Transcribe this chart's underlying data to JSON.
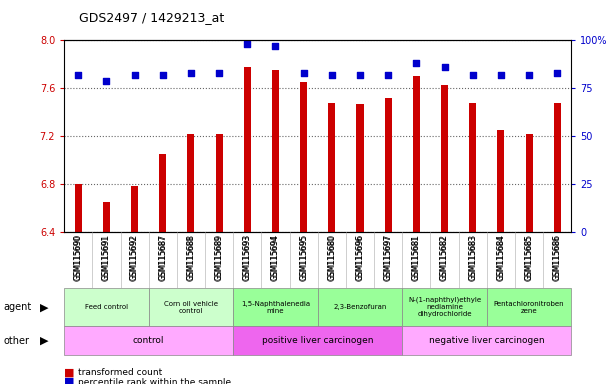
{
  "title": "GDS2497 / 1429213_at",
  "samples": [
    "GSM115690",
    "GSM115691",
    "GSM115692",
    "GSM115687",
    "GSM115688",
    "GSM115689",
    "GSM115693",
    "GSM115694",
    "GSM115695",
    "GSM115680",
    "GSM115696",
    "GSM115697",
    "GSM115681",
    "GSM115682",
    "GSM115683",
    "GSM115684",
    "GSM115685",
    "GSM115686"
  ],
  "transformed_count": [
    6.8,
    6.65,
    6.79,
    7.05,
    7.22,
    7.22,
    7.78,
    7.75,
    7.65,
    7.48,
    7.47,
    7.52,
    7.7,
    7.63,
    7.48,
    7.25,
    7.22,
    7.48
  ],
  "percentile_rank": [
    82,
    79,
    82,
    82,
    83,
    83,
    98,
    97,
    83,
    82,
    82,
    82,
    88,
    86,
    82,
    82,
    82,
    83
  ],
  "ylim_left": [
    6.4,
    8.0
  ],
  "ylim_right": [
    0,
    100
  ],
  "yticks_left": [
    6.4,
    6.8,
    7.2,
    7.6,
    8.0
  ],
  "yticks_right": [
    0,
    25,
    50,
    75,
    100
  ],
  "bar_color": "#cc0000",
  "dot_color": "#0000cc",
  "chart_bg": "#ffffff",
  "agent_groups": [
    {
      "label": "Feed control",
      "start": 0,
      "end": 3,
      "color": "#ccffcc"
    },
    {
      "label": "Corn oil vehicle\ncontrol",
      "start": 3,
      "end": 6,
      "color": "#ccffcc"
    },
    {
      "label": "1,5-Naphthalenedia\nmine",
      "start": 6,
      "end": 9,
      "color": "#99ff99"
    },
    {
      "label": "2,3-Benzofuran",
      "start": 9,
      "end": 12,
      "color": "#99ff99"
    },
    {
      "label": "N-(1-naphthyl)ethyle\nnediamine\ndihydrochloride",
      "start": 12,
      "end": 15,
      "color": "#99ff99"
    },
    {
      "label": "Pentachloronitroben\nzene",
      "start": 15,
      "end": 18,
      "color": "#99ff99"
    }
  ],
  "other_groups": [
    {
      "label": "control",
      "start": 0,
      "end": 6,
      "color": "#ffaaff"
    },
    {
      "label": "positive liver carcinogen",
      "start": 6,
      "end": 12,
      "color": "#ee66ee"
    },
    {
      "label": "negative liver carcinogen",
      "start": 12,
      "end": 18,
      "color": "#ffaaff"
    }
  ],
  "dotted_line_color": "#666666",
  "tick_color_left": "#cc0000",
  "tick_color_right": "#0000cc",
  "legend": [
    {
      "label": "transformed count",
      "color": "#cc0000"
    },
    {
      "label": "percentile rank within the sample",
      "color": "#0000cc"
    }
  ]
}
